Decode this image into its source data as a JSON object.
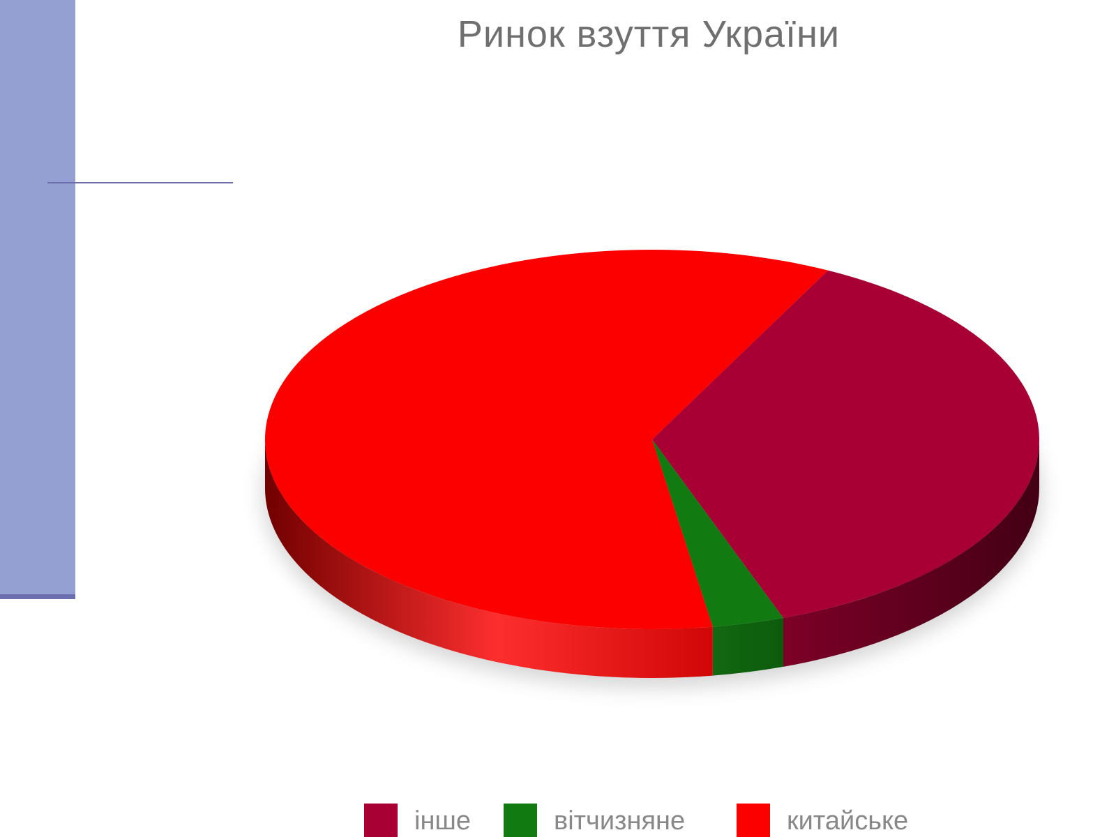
{
  "colors": {
    "side_panel": "#95a0d2",
    "accent": "#6c6eb0",
    "title_text": "#6f6f6f",
    "legend_text": "#888888"
  },
  "chart_data": {
    "type": "pie",
    "title": "Ринок взуття України",
    "three_d": true,
    "legend_position": "bottom",
    "series": [
      {
        "name": "інше",
        "value": 37,
        "color": "#a80034"
      },
      {
        "name": "вітчизняне",
        "value": 3,
        "color": "#117a11"
      },
      {
        "name": "китайське",
        "value": 60,
        "color": "#fc0000"
      }
    ]
  }
}
